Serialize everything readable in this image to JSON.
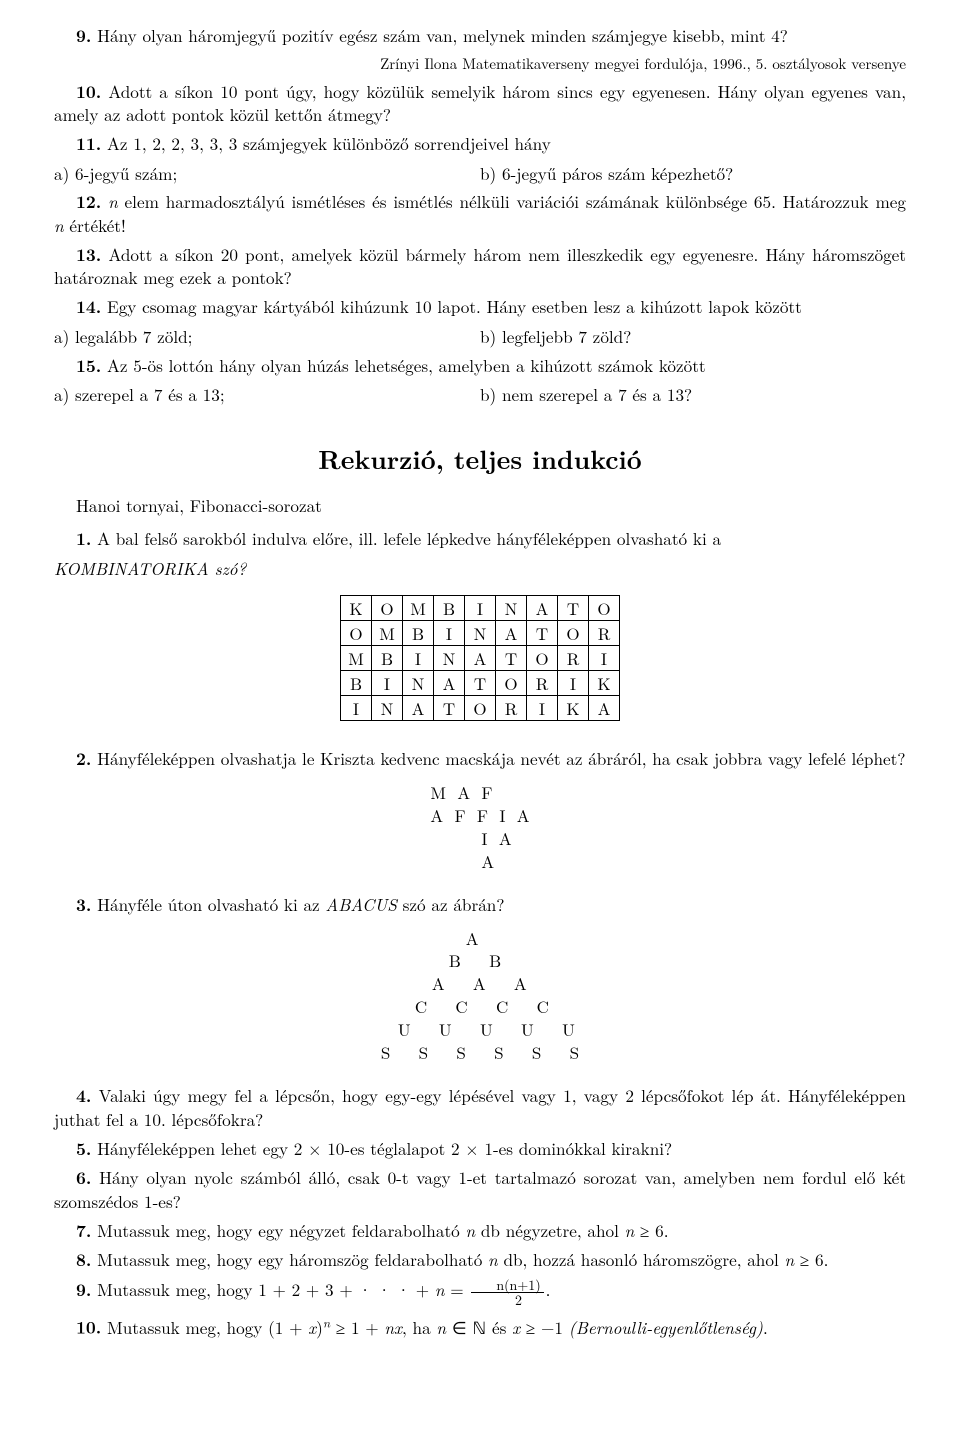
{
  "p9": {
    "num": "9.",
    "text": "Hány olyan háromjegyű pozitív egész szám van, melynek minden számjegye kisebb, mint 4?"
  },
  "right_note": "Zrínyi Ilona Matematikaverseny megyei fordulója, 1996., 5. osztályosok versenye",
  "p10": {
    "num": "10.",
    "text": "Adott a síkon 10 pont úgy, hogy közülük semelyik három sincs egy egyenesen. Hány olyan egyenes van, amely az adott pontok közül kettőn átmegy?"
  },
  "p11": {
    "num": "11.",
    "text": "Az 1, 2, 2, 3, 3, 3 számjegyek különböző sorrendjeivel hány",
    "a": "a) 6-jegyű szám;",
    "b": "b) 6-jegyű páros szám képezhető?"
  },
  "p12": {
    "num": "12.",
    "text_before_n": "",
    "text": "n elem harmadosztályú ismétléses és ismétlés nélküli variációi számának különbsége 65. Határozzuk meg n értékét!"
  },
  "p13": {
    "num": "13.",
    "text": "Adott a síkon 20 pont, amelyek közül bármely három nem illeszkedik egy egyenesre. Hány háromszöget határoznak meg ezek a pontok?"
  },
  "p14": {
    "num": "14.",
    "text": "Egy csomag magyar kártyából kihúzunk 10 lapot. Hány esetben lesz a kihúzott lapok között",
    "a": "a) legalább 7 zöld;",
    "b": "b) legfeljebb 7 zöld?"
  },
  "p15": {
    "num": "15.",
    "text": "Az 5-ös lottón hány olyan húzás lehetséges, amelyben a kihúzott számok között",
    "a": "a) szerepel a 7 és a 13;",
    "b": "b) nem szerepel a 7 és a 13?"
  },
  "section_title": "Rekurzió, teljes indukció",
  "hanoi": "Hanoi tornyai, Fibonacci-sorozat",
  "q1": {
    "num": "1.",
    "text_a": "A bal felső sarokból indulva előre, ill. lefele lépkedve hányféleképpen olvasható ki a",
    "text_b": "KOMBINATORIKA szó?"
  },
  "grid1": [
    [
      "K",
      "O",
      "M",
      "B",
      "I",
      "N",
      "A",
      "T",
      "O"
    ],
    [
      "O",
      "M",
      "B",
      "I",
      "N",
      "A",
      "T",
      "O",
      "R"
    ],
    [
      "M",
      "B",
      "I",
      "N",
      "A",
      "T",
      "O",
      "R",
      "I"
    ],
    [
      "B",
      "I",
      "N",
      "A",
      "T",
      "O",
      "R",
      "I",
      "K"
    ],
    [
      "I",
      "N",
      "A",
      "T",
      "O",
      "R",
      "I",
      "K",
      "A"
    ]
  ],
  "q2": {
    "num": "2.",
    "text": "Hányféleképpen olvashatja le Kriszta kedvenc macskája nevét az ábráról, ha csak jobbra vagy lefelé léphet?"
  },
  "grid2_lines": "M  A  F\nA  F  F  I  A\n         I  A\n         A",
  "q3": {
    "num": "3.",
    "text": "Hányféle úton olvasható ki az ABACUS szó az ábrán?"
  },
  "grid3_lines": "               A\n            B     B\n         A     A     A\n      C     C     C     C\n   U     U     U     U     U\nS     S     S     S     S     S",
  "q4": {
    "num": "4.",
    "text": "Valaki úgy megy fel a lépcsőn, hogy egy-egy lépésével vagy 1, vagy 2 lépcsőfokot lép át. Hányféleképpen juthat fel a 10. lépcsőfokra?"
  },
  "q5": {
    "num": "5.",
    "text": "Hányféleképpen lehet egy 2 × 10-es téglalapot 2 × 1-es dominókkal kirakni?"
  },
  "q6": {
    "num": "6.",
    "text": "Hány olyan nyolc számból álló, csak 0-t vagy 1-et tartalmazó sorozat van, amelyben nem fordul elő két szomszédos 1-es?"
  },
  "q7": {
    "num": "7.",
    "text_a": "Mutassuk meg, hogy egy négyzet feldarabolható ",
    "text_b": " db négyzetre, ahol ",
    "text_c": " ≥ 6."
  },
  "q8": {
    "num": "8.",
    "text_a": "Mutassuk meg, hogy egy háromszög feldarabolható ",
    "text_b": " db, hozzá hasonló háromszögre, ahol ",
    "text_c": " ≥ 6."
  },
  "q9": {
    "num": "9.",
    "text_a": "Mutassuk meg, hogy 1 + 2 + 3 + · · · + ",
    "text_b": " = ",
    "frac_top": "n(n+1)",
    "frac_bot": "2",
    "text_c": "."
  },
  "q10": {
    "num": "10.",
    "text_a": "Mutassuk meg, hogy (1 + ",
    "text_b": ")",
    "text_c": " ≥ 1 + ",
    "text_d": ", ha ",
    "text_e": " ∈ ℕ és ",
    "text_f": " ≥ −1 ",
    "text_g": "(Bernoulli-egyenlőtlenség)."
  }
}
